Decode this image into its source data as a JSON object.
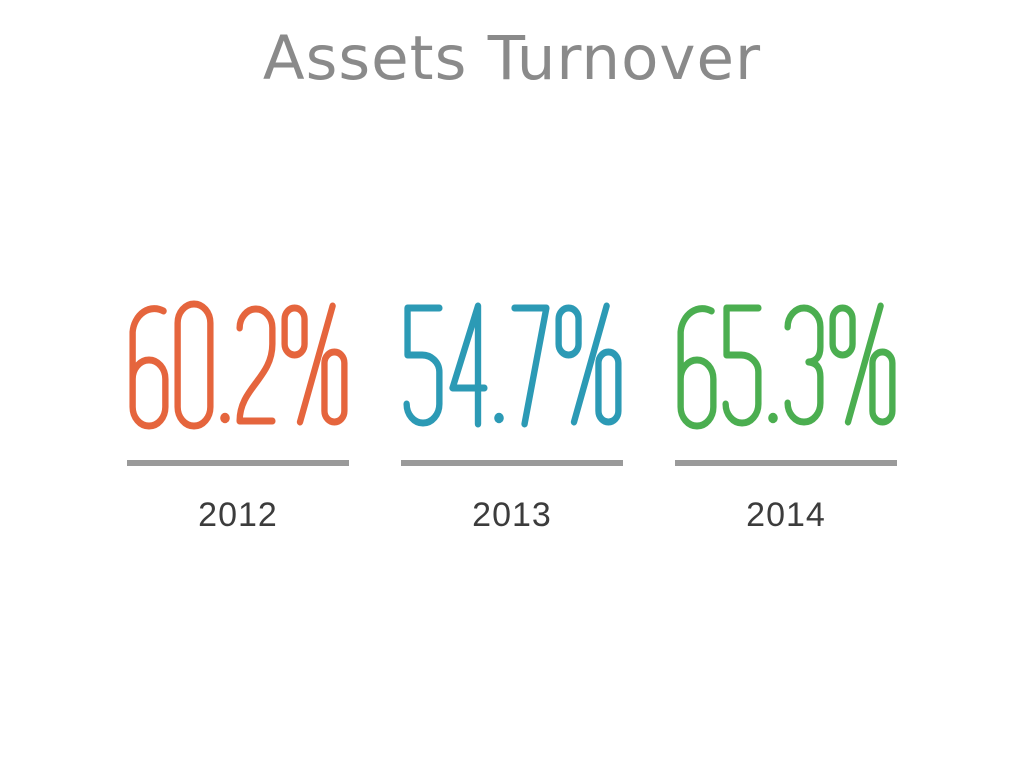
{
  "title": "Assets Turnover",
  "chart_data": {
    "type": "table",
    "title": "Assets Turnover",
    "categories": [
      "2012",
      "2013",
      "2014"
    ],
    "values": [
      60.2,
      54.7,
      65.3
    ],
    "value_labels": [
      "60.2%",
      "54.7%",
      "65.3%"
    ],
    "unit": "%",
    "series_colors": [
      "#e5653d",
      "#2c9ab5",
      "#4bae50"
    ],
    "legend": "none",
    "grid": false
  },
  "columns": [
    {
      "value": "60.2%",
      "year": "2012",
      "color": "#e5653d"
    },
    {
      "value": "54.7%",
      "year": "2013",
      "color": "#2c9ab5"
    },
    {
      "value": "65.3%",
      "year": "2014",
      "color": "#4bae50"
    }
  ],
  "colors": {
    "background": "#ffffff",
    "title": "#8a8a8a",
    "rule": "#9a9a9a",
    "year": "#3c3c3c"
  }
}
